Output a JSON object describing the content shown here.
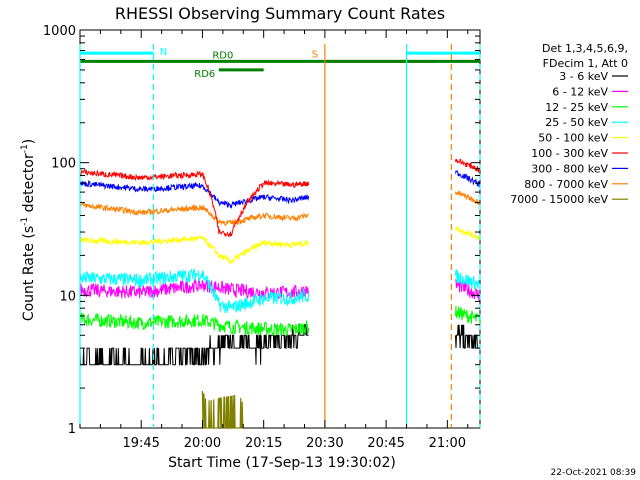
{
  "chart_data": {
    "type": "line",
    "title": "RHESSI Observing Summary Count Rates",
    "xlabel": "Start Time (17-Sep-13 19:30:02)",
    "ylabel_main": "Count Rate (s",
    "ylabel_sup1": "-1",
    "ylabel_mid": " detector",
    "ylabel_sup2": "-1",
    "ylabel_end": ")",
    "yscale": "log",
    "ylim": [
      1,
      1000
    ],
    "xlim_min": [
      0,
      98
    ],
    "x_ticks": [
      {
        "label": "19:45",
        "min": 15
      },
      {
        "label": "20:00",
        "min": 30
      },
      {
        "label": "20:15",
        "min": 45
      },
      {
        "label": "20:30",
        "min": 60
      },
      {
        "label": "20:45",
        "min": 75
      },
      {
        "label": "21:00",
        "min": 90
      }
    ],
    "y_ticks": [
      {
        "label": "1",
        "value": 1
      },
      {
        "label": "10",
        "value": 10
      },
      {
        "label": "100",
        "value": 100
      },
      {
        "label": "1000",
        "value": 1000
      }
    ],
    "legend_header": [
      "Det 1,3,4,5,6,9,",
      "FDecim 1, Att 0"
    ],
    "legend_position": "right",
    "series": [
      {
        "name": "3 - 6 keV",
        "color": "#000000",
        "segments": [
          [
            0,
            3.0
          ],
          [
            15,
            3.0
          ],
          [
            30,
            3.6
          ],
          [
            37,
            4.3
          ],
          [
            45,
            4.2
          ],
          [
            52,
            4.6
          ],
          [
            56,
            6.0
          ]
        ],
        "tail": [
          [
            92,
            5.0
          ],
          [
            98,
            4.0
          ]
        ]
      },
      {
        "name": "6 - 12 keV",
        "color": "#ff00ff",
        "segments": [
          [
            0,
            11.0
          ],
          [
            15,
            10.5
          ],
          [
            30,
            12.0
          ],
          [
            34,
            11.5
          ],
          [
            37,
            11.0
          ],
          [
            45,
            10.5
          ],
          [
            52,
            10.5
          ],
          [
            56,
            11.0
          ]
        ],
        "tail": [
          [
            92,
            12.0
          ],
          [
            98,
            10.0
          ]
        ]
      },
      {
        "name": "12 - 25 keV",
        "color": "#00ff00",
        "segments": [
          [
            0,
            6.6
          ],
          [
            15,
            6.2
          ],
          [
            30,
            6.5
          ],
          [
            34,
            6.0
          ],
          [
            37,
            5.8
          ],
          [
            45,
            5.6
          ],
          [
            52,
            5.5
          ],
          [
            56,
            5.8
          ]
        ],
        "tail": [
          [
            92,
            7.5
          ],
          [
            98,
            6.5
          ]
        ]
      },
      {
        "name": "25 - 50 keV",
        "color": "#00ffff",
        "segments": [
          [
            0,
            13.5
          ],
          [
            15,
            13.0
          ],
          [
            30,
            14.5
          ],
          [
            34,
            8.5
          ],
          [
            37,
            8.0
          ],
          [
            45,
            9.5
          ],
          [
            52,
            9.5
          ],
          [
            56,
            10.0
          ]
        ],
        "tail": [
          [
            92,
            14.0
          ],
          [
            98,
            12.0
          ]
        ]
      },
      {
        "name": "50 - 100 keV",
        "color": "#ffff00",
        "segments": [
          [
            0,
            26
          ],
          [
            15,
            25
          ],
          [
            30,
            27
          ],
          [
            34,
            20
          ],
          [
            37,
            18
          ],
          [
            45,
            25
          ],
          [
            52,
            24
          ],
          [
            56,
            25
          ]
        ],
        "tail": [
          [
            92,
            32
          ],
          [
            98,
            27
          ]
        ]
      },
      {
        "name": "100 - 300 keV",
        "color": "#ff0000",
        "segments": [
          [
            0,
            85
          ],
          [
            15,
            77
          ],
          [
            30,
            82
          ],
          [
            34,
            30
          ],
          [
            37,
            29
          ],
          [
            45,
            70
          ],
          [
            52,
            68
          ],
          [
            56,
            70
          ]
        ],
        "tail": [
          [
            92,
            105
          ],
          [
            98,
            88
          ]
        ]
      },
      {
        "name": "300 - 800 keV",
        "color": "#0000ff",
        "segments": [
          [
            0,
            70
          ],
          [
            15,
            63
          ],
          [
            30,
            67
          ],
          [
            34,
            50
          ],
          [
            37,
            48
          ],
          [
            45,
            55
          ],
          [
            52,
            52
          ],
          [
            56,
            55
          ]
        ],
        "tail": [
          [
            92,
            85
          ],
          [
            98,
            68
          ]
        ]
      },
      {
        "name": "800 - 7000 keV",
        "color": "#ff8000",
        "segments": [
          [
            0,
            48
          ],
          [
            15,
            42
          ],
          [
            30,
            46
          ],
          [
            34,
            36
          ],
          [
            37,
            35
          ],
          [
            45,
            40
          ],
          [
            52,
            38
          ],
          [
            56,
            40
          ]
        ],
        "tail": [
          [
            92,
            60
          ],
          [
            98,
            50
          ]
        ]
      },
      {
        "name": "7000 - 15000 keV",
        "color": "#808000",
        "segments": [
          [
            30,
            1.9
          ],
          [
            31,
            1.6
          ],
          [
            39,
            1.8
          ],
          [
            40,
            1.5
          ]
        ],
        "tail": []
      }
    ],
    "flag_bars": [
      {
        "label": "N",
        "color": "#00ffff",
        "segments": [
          [
            0,
            18
          ]
        ],
        "extra": [
          [
            80,
            98
          ]
        ],
        "y": 670
      },
      {
        "label": "S",
        "color": "#ff8000",
        "segments": [
          [
            60,
            87
          ]
        ],
        "y": 580
      },
      {
        "label": "RD0",
        "color": "#008000",
        "segments": [
          [
            0,
            98
          ]
        ],
        "y": 580
      },
      {
        "label": "RD6",
        "color": "#008000",
        "segments": [
          [
            34,
            45
          ]
        ],
        "y": 500
      }
    ],
    "vertical_lines": [
      {
        "min": 0,
        "color": "#00ffff",
        "style": "solid"
      },
      {
        "min": 18,
        "color": "#00ffff",
        "style": "dashed"
      },
      {
        "min": 60,
        "color": "#ff8000",
        "style": "solid"
      },
      {
        "min": 80,
        "color": "#00ffff",
        "style": "solid"
      },
      {
        "min": 91,
        "color": "#ff8000",
        "style": "dashed"
      },
      {
        "min": 98,
        "color": "#00ffff",
        "style": "dashed"
      }
    ],
    "grid": false
  },
  "footer": {
    "timestamp": "22-Oct-2021 08:39"
  }
}
